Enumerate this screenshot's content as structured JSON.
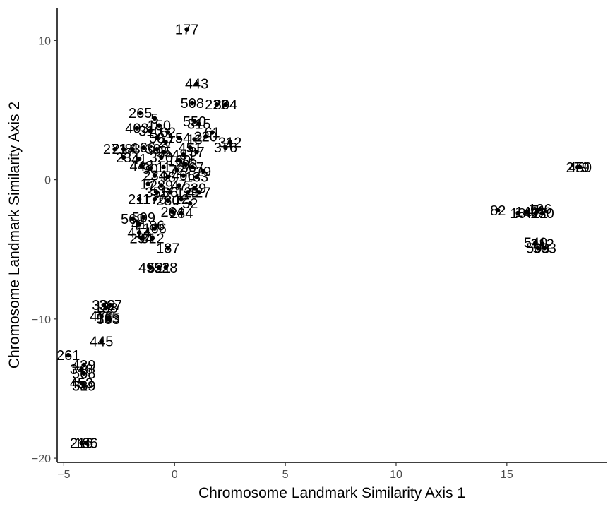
{
  "chart_data": {
    "type": "scatter",
    "title": "",
    "xlabel": "Chromosome Landmark Similarity Axis 1",
    "ylabel": "Chromosome Landmark Similarity Axis 2",
    "xlim": [
      -5.3,
      19.5
    ],
    "ylim": [
      -20.3,
      12.3
    ],
    "xticks": [
      -5,
      0,
      5,
      10,
      15
    ],
    "yticks": [
      -20,
      -10,
      0,
      10
    ],
    "grid": false,
    "legend": "none",
    "point_color": "#000000",
    "points": [
      {
        "x": 0.55,
        "y": 10.8,
        "label": "177"
      },
      {
        "x": 1.0,
        "y": 6.9,
        "label": "443"
      },
      {
        "x": 0.8,
        "y": 5.5,
        "label": "508"
      },
      {
        "x": 1.9,
        "y": 5.4,
        "label": "222"
      },
      {
        "x": 2.3,
        "y": 5.4,
        "label": "304"
      },
      {
        "x": -1.55,
        "y": 4.8,
        "label": "265"
      },
      {
        "x": -0.9,
        "y": 4.4,
        "label": "5"
      },
      {
        "x": 0.9,
        "y": 4.2,
        "label": "550"
      },
      {
        "x": 1.1,
        "y": 4.0,
        "label": "315"
      },
      {
        "x": -0.7,
        "y": 3.9,
        "label": "150"
      },
      {
        "x": -1.7,
        "y": 3.7,
        "label": "403"
      },
      {
        "x": -1.1,
        "y": 3.5,
        "label": "310"
      },
      {
        "x": -0.3,
        "y": 3.4,
        "label": "62"
      },
      {
        "x": 1.7,
        "y": 3.4,
        "label": "61"
      },
      {
        "x": 1.4,
        "y": 3.1,
        "label": "220"
      },
      {
        "x": 0.2,
        "y": 3.0,
        "label": "154"
      },
      {
        "x": -0.8,
        "y": 3.0,
        "label": "58"
      },
      {
        "x": 0.9,
        "y": 2.9,
        "label": "13"
      },
      {
        "x": -0.4,
        "y": 2.7,
        "label": "27"
      },
      {
        "x": 2.5,
        "y": 2.7,
        "label": "312"
      },
      {
        "x": 2.3,
        "y": 2.3,
        "label": "376"
      },
      {
        "x": 0.7,
        "y": 2.3,
        "label": "451"
      },
      {
        "x": 1.0,
        "y": 2.0,
        "label": "37"
      },
      {
        "x": 0.4,
        "y": 1.8,
        "label": "481"
      },
      {
        "x": -2.7,
        "y": 2.2,
        "label": "271"
      },
      {
        "x": -2.3,
        "y": 2.2,
        "label": "214"
      },
      {
        "x": -1.9,
        "y": 2.2,
        "label": "83"
      },
      {
        "x": -1.4,
        "y": 2.3,
        "label": "166"
      },
      {
        "x": -0.8,
        "y": 2.2,
        "label": "300"
      },
      {
        "x": -0.5,
        "y": 2.0,
        "label": "95"
      },
      {
        "x": -2.3,
        "y": 1.6,
        "label": "23"
      },
      {
        "x": -1.6,
        "y": 1.5,
        "label": "41"
      },
      {
        "x": -0.6,
        "y": 1.6,
        "label": "320"
      },
      {
        "x": 0.2,
        "y": 1.4,
        "label": "160"
      },
      {
        "x": 0.5,
        "y": 1.1,
        "label": "203"
      },
      {
        "x": 0.8,
        "y": 0.9,
        "label": "367"
      },
      {
        "x": 1.3,
        "y": 0.6,
        "label": "29"
      },
      {
        "x": -1.5,
        "y": 1.0,
        "label": "448"
      },
      {
        "x": -1.1,
        "y": 0.8,
        "label": "90"
      },
      {
        "x": -0.5,
        "y": 0.9,
        "label": "11"
      },
      {
        "x": 0.1,
        "y": 0.7,
        "label": "72"
      },
      {
        "x": -0.9,
        "y": 0.3,
        "label": "234"
      },
      {
        "x": -0.3,
        "y": 0.2,
        "label": "98"
      },
      {
        "x": 0.4,
        "y": 0.3,
        "label": "406"
      },
      {
        "x": 1.0,
        "y": 0.2,
        "label": "133"
      },
      {
        "x": -1.2,
        "y": -0.3,
        "label": "17"
      },
      {
        "x": -0.6,
        "y": -0.4,
        "label": "289"
      },
      {
        "x": 0.2,
        "y": -0.4,
        "label": "47"
      },
      {
        "x": 0.9,
        "y": -0.6,
        "label": "339"
      },
      {
        "x": -0.8,
        "y": -0.9,
        "label": "355"
      },
      {
        "x": -0.2,
        "y": -0.9,
        "label": "66"
      },
      {
        "x": 0.6,
        "y": -0.9,
        "label": "121"
      },
      {
        "x": 1.1,
        "y": -0.9,
        "label": "427"
      },
      {
        "x": -1.6,
        "y": -1.4,
        "label": "211"
      },
      {
        "x": -0.9,
        "y": -1.4,
        "label": "176"
      },
      {
        "x": -0.3,
        "y": -1.5,
        "label": "280"
      },
      {
        "x": 0.3,
        "y": -1.4,
        "label": "12"
      },
      {
        "x": 0.7,
        "y": -1.7,
        "label": "52"
      },
      {
        "x": -0.1,
        "y": -2.3,
        "label": "264"
      },
      {
        "x": 0.3,
        "y": -2.4,
        "label": "284"
      },
      {
        "x": -1.9,
        "y": -2.8,
        "label": "562"
      },
      {
        "x": -1.4,
        "y": -2.7,
        "label": "509"
      },
      {
        "x": -1.6,
        "y": -3.2,
        "label": "41"
      },
      {
        "x": -0.8,
        "y": -3.3,
        "label": "86"
      },
      {
        "x": -0.9,
        "y": -3.5,
        "label": "166"
      },
      {
        "x": -1.6,
        "y": -3.8,
        "label": "414"
      },
      {
        "x": -1.5,
        "y": -4.2,
        "label": "294"
      },
      {
        "x": -1.0,
        "y": -4.2,
        "label": "312"
      },
      {
        "x": -0.3,
        "y": -4.9,
        "label": "187"
      },
      {
        "x": -1.1,
        "y": -6.3,
        "label": "495"
      },
      {
        "x": -0.7,
        "y": -6.3,
        "label": "521"
      },
      {
        "x": -0.4,
        "y": -6.3,
        "label": "528"
      },
      {
        "x": -3.2,
        "y": -9.0,
        "label": "332"
      },
      {
        "x": -2.9,
        "y": -9.0,
        "label": "367"
      },
      {
        "x": -3.1,
        "y": -9.2,
        "label": "188"
      },
      {
        "x": -3.3,
        "y": -9.8,
        "label": "470"
      },
      {
        "x": -3.0,
        "y": -9.9,
        "label": "165"
      },
      {
        "x": -3.0,
        "y": -10.0,
        "label": "533"
      },
      {
        "x": -3.3,
        "y": -11.6,
        "label": "445"
      },
      {
        "x": -4.8,
        "y": -12.6,
        "label": "261"
      },
      {
        "x": -4.1,
        "y": -13.3,
        "label": "439"
      },
      {
        "x": -4.2,
        "y": -13.6,
        "label": "348"
      },
      {
        "x": -4.1,
        "y": -13.9,
        "label": "568"
      },
      {
        "x": -4.2,
        "y": -14.6,
        "label": "453"
      },
      {
        "x": -4.1,
        "y": -14.8,
        "label": "519"
      },
      {
        "x": -4.1,
        "y": -14.8,
        "label": "339"
      },
      {
        "x": -4.2,
        "y": -18.9,
        "label": "216"
      },
      {
        "x": -4.0,
        "y": -18.9,
        "label": "186"
      },
      {
        "x": 18.2,
        "y": 0.9,
        "label": "279"
      },
      {
        "x": 18.3,
        "y": 0.9,
        "label": "450"
      },
      {
        "x": 14.6,
        "y": -2.2,
        "label": "82"
      },
      {
        "x": 15.5,
        "y": -2.4,
        "label": "18"
      },
      {
        "x": 15.9,
        "y": -2.3,
        "label": "140"
      },
      {
        "x": 16.3,
        "y": -2.4,
        "label": "412"
      },
      {
        "x": 16.4,
        "y": -2.2,
        "label": "51"
      },
      {
        "x": 16.5,
        "y": -2.1,
        "label": "196"
      },
      {
        "x": 16.6,
        "y": -2.4,
        "label": "230"
      },
      {
        "x": 16.3,
        "y": -4.5,
        "label": "540"
      },
      {
        "x": 16.6,
        "y": -4.6,
        "label": "312"
      },
      {
        "x": 16.4,
        "y": -4.9,
        "label": "503"
      },
      {
        "x": 16.7,
        "y": -4.9,
        "label": "563"
      }
    ]
  }
}
